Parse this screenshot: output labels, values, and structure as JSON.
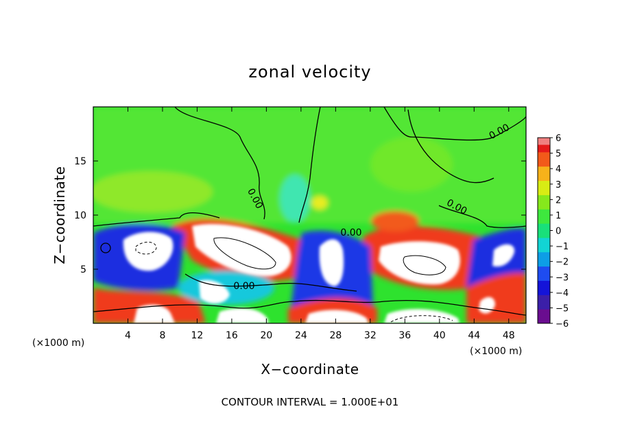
{
  "chart_data": {
    "type": "heatmap",
    "title": "zonal velocity",
    "xlabel": "X−coordinate",
    "ylabel": "Z−coordinate",
    "x_unit_left": "(×1000 m)",
    "x_unit_right": "(×1000 m)",
    "xlim": [
      0,
      50
    ],
    "ylim": [
      0,
      20
    ],
    "x_ticks": [
      4,
      8,
      12,
      16,
      20,
      24,
      28,
      32,
      36,
      40,
      44,
      48
    ],
    "y_ticks": [
      5,
      10,
      15
    ],
    "colorbar": {
      "min": -6,
      "max": 6,
      "ticks": [
        6,
        5,
        4,
        3,
        2,
        1,
        0,
        -1,
        -2,
        -3,
        -4,
        -5,
        -6
      ],
      "tick_labels": [
        "6",
        "5",
        "4",
        "3",
        "2",
        "1",
        "0",
        "−1",
        "−2",
        "−3",
        "−4",
        "−5",
        "−6"
      ],
      "colors": [
        "#6a0d8f",
        "#3b1fa8",
        "#1414d8",
        "#1e4cf0",
        "#0d9ee6",
        "#12d4d4",
        "#19e07a",
        "#3ee83e",
        "#86e81c",
        "#d8ec14",
        "#f7b21a",
        "#f25a1a",
        "#e51a1a",
        "#f08080"
      ]
    },
    "contour_labels": [
      "0.00",
      "0.00",
      "0.00",
      "0.00",
      "0.00"
    ],
    "footer": "CONTOUR INTERVAL = 1.000E+01"
  }
}
